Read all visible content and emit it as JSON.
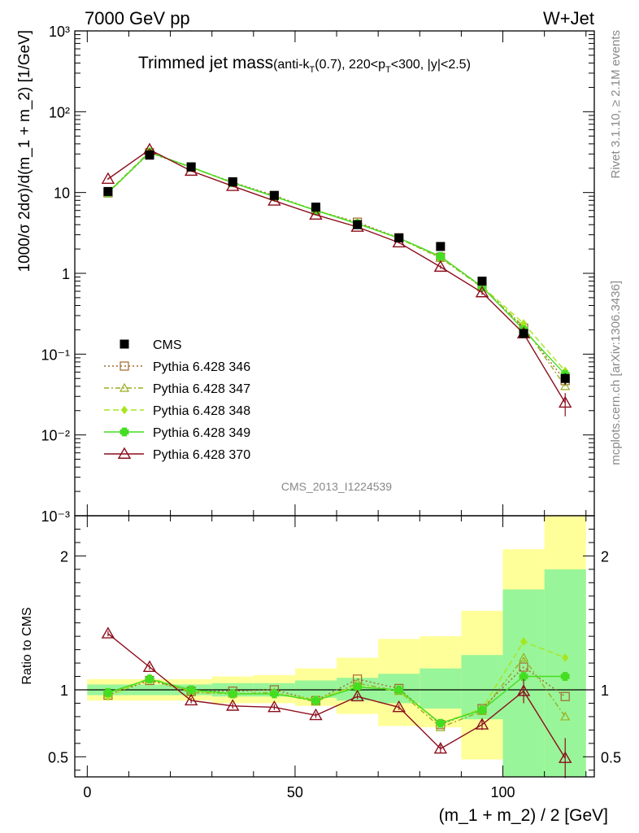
{
  "header": {
    "energy": "7000 GeV pp",
    "process": "W+Jet"
  },
  "title_main": "Trimmed jet mass",
  "title_detail": {
    "alg": "(anti-k",
    "alg_sub": "T",
    "cone": "(0.7), 220<p",
    "pt_sub": "T",
    "rest": "<300, |y|<2.5)"
  },
  "side_text": {
    "rivet": "Rivet 3.1.10, ≥ 2.1M events",
    "mcplots": "mcplots.cern.ch [arXiv:1306.3436]"
  },
  "analysis_id": "CMS_2013_I1224539",
  "colors": {
    "cms": "#000000",
    "p346": "#a0692c",
    "p347": "#9aae1e",
    "p348": "#a6e61e",
    "p349": "#44dd22",
    "p370": "#8b0e1c",
    "band_inner": "#99f599",
    "band_outer": "#ffff99"
  },
  "chart_data": [
    {
      "type": "line",
      "panel": "main",
      "ylabel": "1000/σ 2dσ)/d(m_1 + m_2) [1/GeV]",
      "yscale": "log",
      "ylim": [
        0.001,
        1000
      ],
      "xlim": [
        -3,
        122
      ],
      "y_tick_labels": [
        "10⁻³",
        "10⁻²",
        "10⁻¹",
        "1",
        "10",
        "10²",
        "10³"
      ],
      "legend_position": "center-left",
      "x": [
        5,
        15,
        25,
        35,
        45,
        55,
        65,
        75,
        85,
        95,
        105,
        115
      ],
      "series": [
        {
          "name": "CMS",
          "style": "data",
          "values": [
            10.3,
            29.0,
            20.8,
            13.6,
            9.2,
            6.6,
            4.0,
            2.75,
            2.15,
            0.8,
            0.18,
            0.05
          ],
          "errors": [
            0.3,
            0.8,
            0.5,
            0.3,
            0.2,
            0.2,
            0.1,
            0.1,
            0.1,
            0.05,
            0.02,
            0.008
          ]
        },
        {
          "name": "Pythia 6.428 346",
          "style": "square-dotted",
          "values": [
            9.9,
            31.0,
            20.5,
            13.4,
            9.2,
            6.0,
            4.3,
            2.75,
            1.58,
            0.68,
            0.21,
            0.047
          ]
        },
        {
          "name": "Pythia 6.428 347",
          "style": "triangle-dashdot",
          "values": [
            10.1,
            32.0,
            20.4,
            13.2,
            9.0,
            6.0,
            4.2,
            2.7,
            1.55,
            0.67,
            0.22,
            0.04
          ]
        },
        {
          "name": "Pythia 6.428 348",
          "style": "diamond-dashed",
          "values": [
            9.8,
            31.5,
            20.5,
            13.1,
            8.9,
            6.1,
            4.1,
            2.72,
            1.6,
            0.69,
            0.24,
            0.062
          ]
        },
        {
          "name": "Pythia 6.428 349",
          "style": "cross-solid",
          "values": [
            10.0,
            31.3,
            20.7,
            13.2,
            8.9,
            6.0,
            4.1,
            2.74,
            1.62,
            0.68,
            0.2,
            0.056
          ],
          "errors": [
            0.2,
            0.6,
            0.4,
            0.3,
            0.2,
            0.1,
            0.1,
            0.06,
            0.05,
            0.03,
            0.015,
            0.008
          ]
        },
        {
          "name": "Pythia 6.428 370",
          "style": "triangle-solid",
          "values": [
            14.7,
            34.0,
            18.5,
            12.0,
            7.9,
            5.3,
            3.75,
            2.4,
            1.2,
            0.58,
            0.18,
            0.025
          ],
          "errors": [
            0.4,
            0.8,
            0.4,
            0.3,
            0.2,
            0.1,
            0.1,
            0.06,
            0.06,
            0.04,
            0.02,
            0.008
          ]
        }
      ]
    },
    {
      "type": "line",
      "panel": "ratio",
      "xlabel": "(m_1 + m_2) / 2 [GeV]",
      "ylabel": "Ratio to CMS",
      "ylim": [
        0.35,
        2.3
      ],
      "xlim": [
        -3,
        122
      ],
      "x_ticks": [
        0,
        50,
        100
      ],
      "y_ticks": [
        0.5,
        1,
        2
      ],
      "x": [
        5,
        15,
        25,
        35,
        45,
        55,
        65,
        75,
        85,
        95,
        105,
        115
      ],
      "bins": [
        [
          0,
          10
        ],
        [
          10,
          20
        ],
        [
          20,
          30
        ],
        [
          30,
          40
        ],
        [
          40,
          50
        ],
        [
          50,
          60
        ],
        [
          60,
          70
        ],
        [
          70,
          80
        ],
        [
          80,
          90
        ],
        [
          90,
          100
        ],
        [
          100,
          110
        ],
        [
          110,
          120
        ]
      ],
      "band_inner": [
        [
          0.96,
          1.04
        ],
        [
          0.96,
          1.04
        ],
        [
          0.96,
          1.04
        ],
        [
          0.95,
          1.05
        ],
        [
          0.95,
          1.05
        ],
        [
          0.94,
          1.07
        ],
        [
          0.92,
          1.09
        ],
        [
          0.9,
          1.12
        ],
        [
          0.86,
          1.16
        ],
        [
          0.78,
          1.26
        ],
        [
          0.3,
          1.75
        ],
        [
          0.3,
          1.9
        ]
      ],
      "band_outer": [
        [
          0.92,
          1.08
        ],
        [
          0.92,
          1.08
        ],
        [
          0.92,
          1.08
        ],
        [
          0.9,
          1.1
        ],
        [
          0.9,
          1.11
        ],
        [
          0.88,
          1.16
        ],
        [
          0.82,
          1.24
        ],
        [
          0.73,
          1.38
        ],
        [
          0.72,
          1.4
        ],
        [
          0.48,
          1.59
        ],
        [
          0.42,
          2.05
        ],
        [
          0.3,
          2.3
        ]
      ],
      "series": [
        {
          "name": "Pythia 6.428 346",
          "values": [
            0.96,
            1.07,
            0.99,
            0.99,
            1.0,
            0.92,
            1.08,
            1.01,
            0.74,
            0.86,
            1.17,
            0.95
          ]
        },
        {
          "name": "Pythia 6.428 347",
          "values": [
            0.97,
            1.08,
            0.98,
            0.97,
            0.98,
            0.91,
            1.05,
            0.99,
            0.72,
            0.84,
            1.24,
            0.8
          ]
        },
        {
          "name": "Pythia 6.428 348",
          "values": [
            0.95,
            1.09,
            0.99,
            0.97,
            0.97,
            0.93,
            1.03,
            0.99,
            0.75,
            0.86,
            1.36,
            1.24
          ]
        },
        {
          "name": "Pythia 6.428 349",
          "values": [
            0.98,
            1.08,
            1.0,
            0.97,
            0.97,
            0.92,
            1.02,
            1.0,
            0.75,
            0.85,
            1.1,
            1.1
          ]
        },
        {
          "name": "Pythia 6.428 370",
          "values": [
            1.42,
            1.17,
            0.92,
            0.88,
            0.87,
            0.81,
            0.95,
            0.87,
            0.56,
            0.74,
            0.99,
            0.49
          ],
          "errors": [
            0.02,
            0.02,
            0.02,
            0.02,
            0.02,
            0.02,
            0.02,
            0.02,
            0.03,
            0.04,
            0.09,
            0.15
          ]
        }
      ]
    }
  ]
}
